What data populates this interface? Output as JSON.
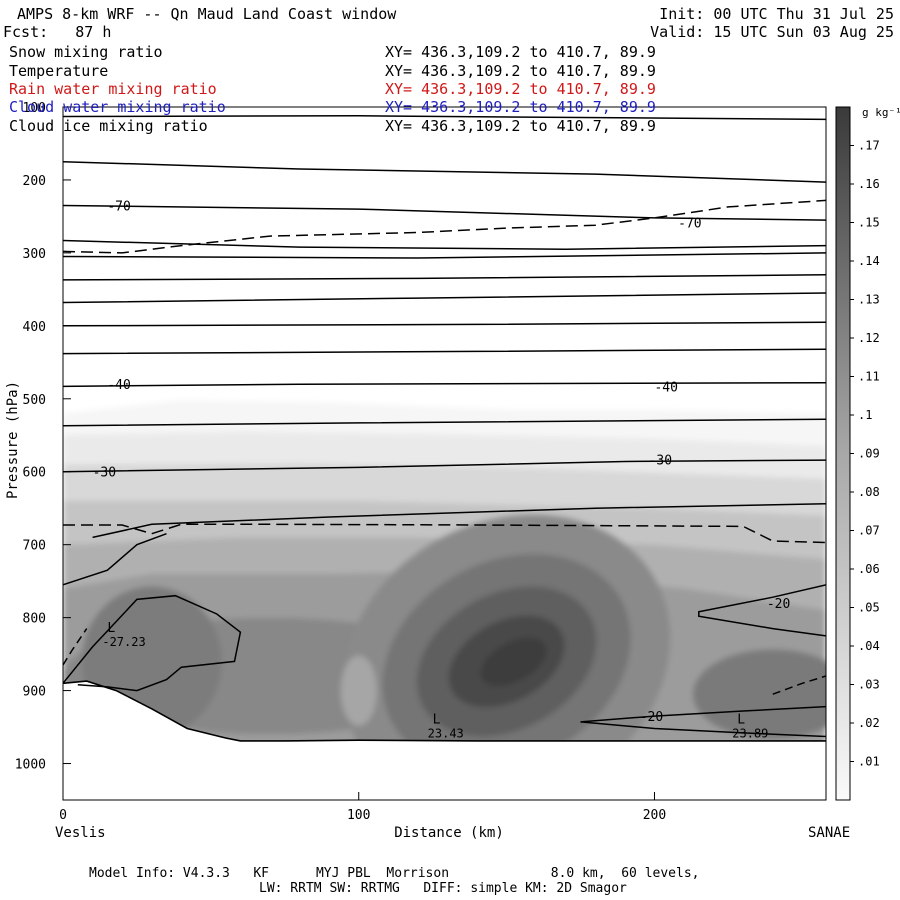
{
  "header": {
    "title": "AMPS 8-km WRF -- Qn Maud Land Coast window",
    "fcst": "Fcst:   87 h",
    "init": "Init: 00 UTC Thu 31 Jul 25",
    "valid": "Valid: 15 UTC Sun 03 Aug 25"
  },
  "fields": [
    {
      "label": "Snow mixing ratio",
      "coords": "XY= 436.3,109.2 to 410.7, 89.9",
      "color": "#000000"
    },
    {
      "label": "Temperature",
      "coords": "XY= 436.3,109.2 to 410.7, 89.9",
      "color": "#000000"
    },
    {
      "label": "Rain water mixing ratio",
      "coords": "XY= 436.3,109.2 to 410.7, 89.9",
      "color": "#d01818"
    },
    {
      "label": "Cloud water mixing ratio",
      "coords": "XY= 436.3,109.2 to 410.7, 89.9",
      "color": "#2020c0"
    },
    {
      "label": "Cloud ice mixing ratio",
      "coords": "XY= 436.3,109.2 to 410.7, 89.9",
      "color": "#000000"
    }
  ],
  "footer": {
    "line1": "Model Info: V4.3.3   KF      MYJ PBL  Morrison             8.0 km,  60 levels,",
    "line2": "LW: RRTM SW: RRTMG   DIFF: simple KM: 2D Smagor"
  },
  "chart_data": {
    "type": "heatmap",
    "xlabel": "Distance (km)",
    "ylabel": "Pressure (hPa)",
    "xlim": [
      0,
      258
    ],
    "ylim": [
      1050,
      100
    ],
    "x_ticks": [
      0,
      100,
      200
    ],
    "y_ticks": [
      100,
      200,
      300,
      400,
      500,
      600,
      700,
      800,
      900,
      1000
    ],
    "x_end_labels": {
      "left": "Veslis",
      "right": "SANAE"
    },
    "colorbar": {
      "unit": "g kg⁻¹",
      "ticks": [
        ".01",
        ".02",
        ".03",
        ".04",
        ".05",
        ".06",
        ".07",
        ".08",
        ".09",
        ".1",
        ".11",
        ".12",
        ".13",
        ".14",
        ".15",
        ".16",
        ".17"
      ],
      "range": [
        0,
        0.18
      ]
    },
    "isotherms": [
      {
        "label": "-70",
        "x": 15,
        "p": 235
      },
      {
        "label": "-70",
        "x": 208,
        "p": 258
      },
      {
        "label": "-40",
        "x": 15,
        "p": 480
      },
      {
        "label": "-40",
        "x": 200,
        "p": 483
      },
      {
        "label": "-30",
        "x": 10,
        "p": 600
      },
      {
        "label": "-30",
        "x": 198,
        "p": 583
      },
      {
        "label": "-20",
        "x": 238,
        "p": 780
      },
      {
        "label": "-20",
        "x": 195,
        "p": 935
      }
    ],
    "extrema": [
      {
        "label": "L",
        "value": "-27.23",
        "x": 15,
        "p": 820
      },
      {
        "label": "L",
        "value": "23.43",
        "x": 125,
        "p": 945
      },
      {
        "label": "L",
        "value": "23.89",
        "x": 228,
        "p": 945
      }
    ],
    "snow_max": {
      "x": 150,
      "p": 860,
      "value": 0.165
    },
    "colors": {
      "frame": "#000000",
      "shade_max": "#3a3a3a"
    }
  }
}
